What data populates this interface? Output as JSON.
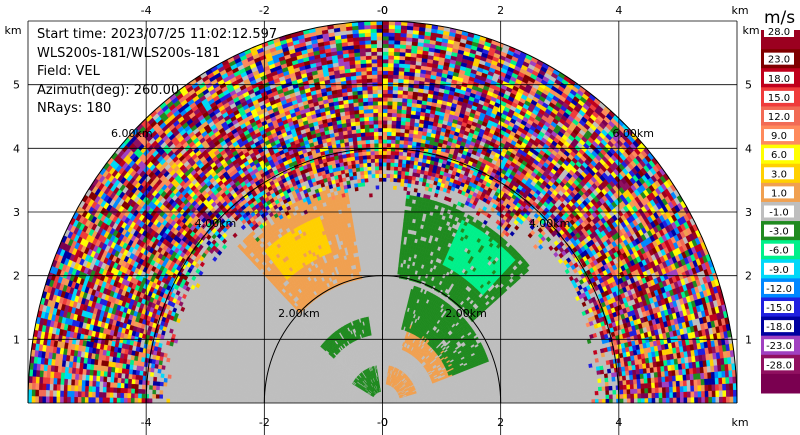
{
  "info": {
    "start_time": "Start time: 2023/07/25 11:02:12.597",
    "instrument": "WLS200s-181/WLS200s-181",
    "field": "Field: VEL",
    "azimuth": "Azimuth(deg): 260.00",
    "nrays": "NRays: 180"
  },
  "colorbar": {
    "title": "m/s",
    "labels": [
      "28.0",
      "23.0",
      "18.0",
      "15.0",
      "12.0",
      "9.0",
      "6.0",
      "3.0",
      "1.0",
      "-1.0",
      "-3.0",
      "-6.0",
      "-9.0",
      "-12.0",
      "-15.0",
      "-18.0",
      "-23.0",
      "-28.0"
    ],
    "colors": [
      "#9b0020",
      "#800000",
      "#c0001c",
      "#ef3b3b",
      "#f26b55",
      "#ff8a5c",
      "#ffff00",
      "#ffd000",
      "#f0a050",
      "#bebebe",
      "#1f8a1f",
      "#00f08a",
      "#00d8f8",
      "#0088ff",
      "#2020e0",
      "#0000a0",
      "#a040c0",
      "#901060",
      "#7a0050"
    ]
  },
  "chart_data": {
    "type": "heatmap",
    "title": "",
    "xlabel": "",
    "ylabel": "",
    "x_unit": "km",
    "y_unit": "km",
    "xlim": [
      -6,
      6
    ],
    "ylim": [
      0,
      6
    ],
    "x_ticks": [
      -4,
      -2,
      0,
      2,
      4
    ],
    "x_tick_labels": [
      "-4",
      "-2",
      "-0",
      "2",
      "4"
    ],
    "y_ticks": [
      1,
      2,
      3,
      4,
      5
    ],
    "y_tick_labels": [
      "1",
      "2",
      "3",
      "4",
      "5"
    ],
    "grid": true,
    "max_range_km": 6,
    "range_rings": [
      {
        "radius_km": 2,
        "label": "2.00km"
      },
      {
        "radius_km": 4,
        "label": "4.00km"
      },
      {
        "radius_km": 6,
        "label": "6.00km"
      }
    ],
    "velocity_regions": [
      {
        "r": [
          0.0,
          6.0
        ],
        "theta": [
          0,
          180
        ],
        "value": -1.0
      },
      {
        "r": [
          0.2,
          0.6
        ],
        "theta": [
          100,
          150
        ],
        "value": -3.0
      },
      {
        "r": [
          1.1,
          1.4
        ],
        "theta": [
          100,
          140
        ],
        "value": -3.0
      },
      {
        "r": [
          2.0,
          3.5
        ],
        "theta": [
          100,
          135
        ],
        "value": 1.0
      },
      {
        "r": [
          2.5,
          3.1
        ],
        "theta": [
          110,
          130
        ],
        "value": 3.0
      },
      {
        "r": [
          0.3,
          0.6
        ],
        "theta": [
          15,
          80
        ],
        "value": 1.0
      },
      {
        "r": [
          0.9,
          1.3
        ],
        "theta": [
          20,
          70
        ],
        "value": 1.0
      },
      {
        "r": [
          1.2,
          1.9
        ],
        "theta": [
          20,
          75
        ],
        "value": -3.0
      },
      {
        "r": [
          2.0,
          3.3
        ],
        "theta": [
          40,
          83
        ],
        "value": -3.0
      },
      {
        "r": [
          2.4,
          3.2
        ],
        "theta": [
          45,
          65
        ],
        "value": -6.0
      },
      {
        "r": [
          3.8,
          6.0
        ],
        "theta": [
          0,
          180
        ],
        "value": "noise"
      }
    ]
  }
}
